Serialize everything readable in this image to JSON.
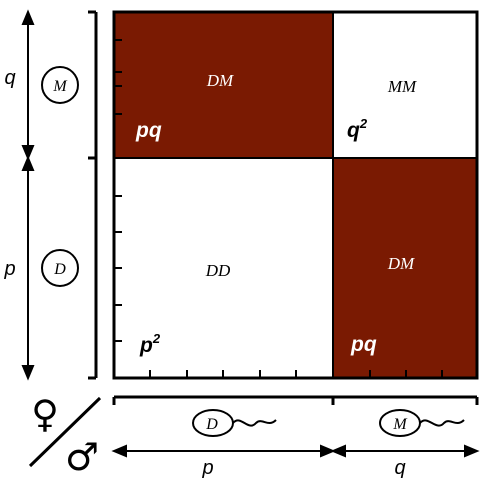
{
  "axes": {
    "female": {
      "q_label": "q",
      "p_label": "p",
      "top_allele": "M",
      "bottom_allele": "D"
    },
    "male": {
      "p_label": "p",
      "q_label": "q",
      "left_allele": "D",
      "right_allele": "M"
    }
  },
  "symbols": {
    "female": "♀",
    "male": "♂"
  },
  "cells": {
    "top_left": {
      "genotype": "DM",
      "frequency": "pq"
    },
    "top_right": {
      "genotype": "MM",
      "frequency": "q",
      "power": "2"
    },
    "bottom_left": {
      "genotype": "DD",
      "frequency": "p",
      "power": "2"
    },
    "bottom_right": {
      "genotype": "DM",
      "frequency": "pq"
    }
  },
  "colors": {
    "heterozygous_fill": "#7a1a02",
    "homozygous_fill": "#ffffff",
    "ink": "#000000"
  }
}
